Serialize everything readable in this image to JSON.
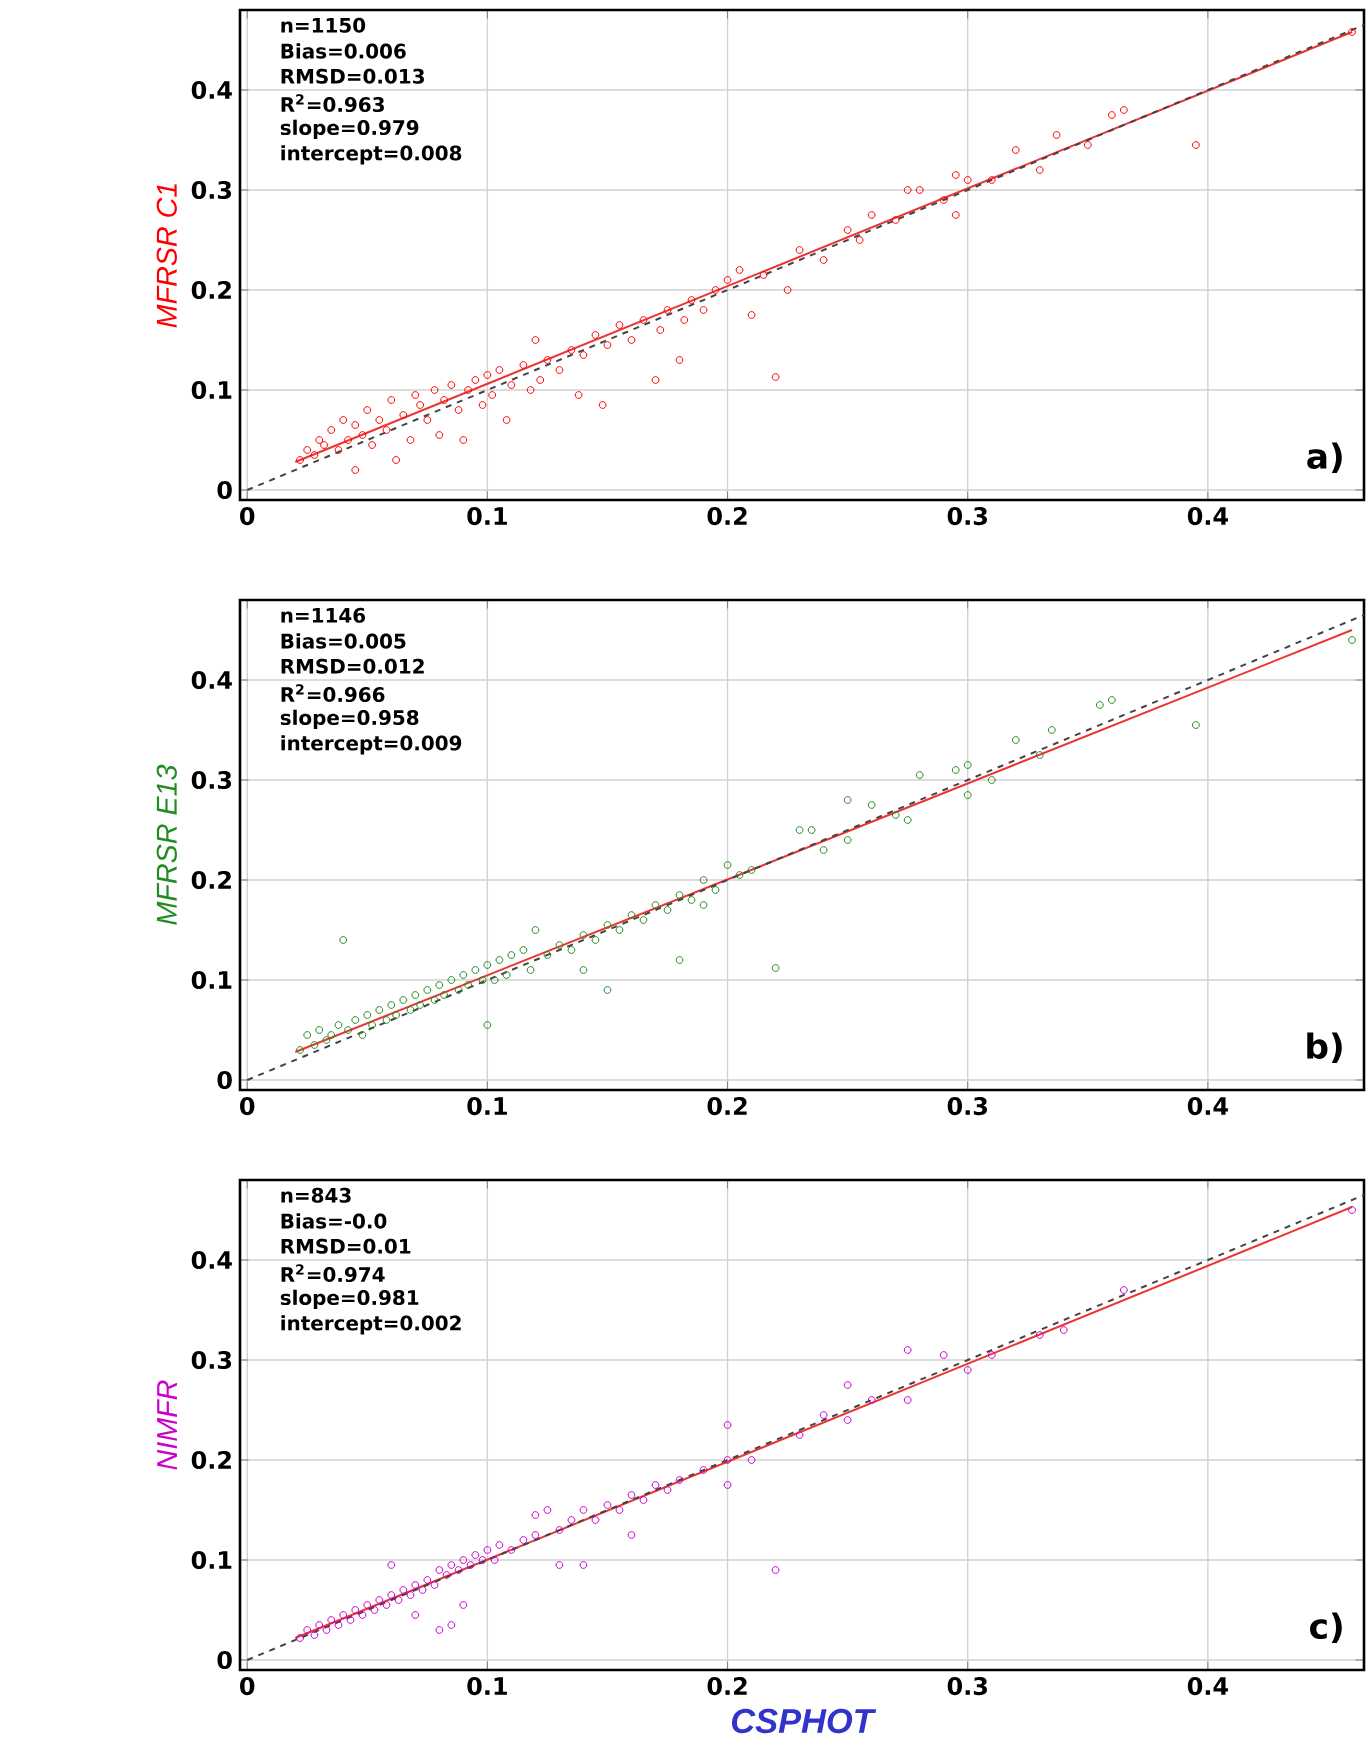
{
  "chart_data": [
    {
      "type": "scatter",
      "ylabel": "MFRSR C1",
      "xlim": [
        -0.003,
        0.465
      ],
      "ylim": [
        -0.01,
        0.48
      ],
      "xticks": [
        0,
        0.1,
        0.2,
        0.3,
        0.4
      ],
      "yticks": [
        0,
        0.1,
        0.2,
        0.3,
        0.4
      ],
      "grid": true,
      "annotations": [
        "n=1150",
        "Bias=0.006",
        "RMSD=0.013",
        "R$^{2}$=0.963",
        "slope=0.979",
        "intercept=0.008",
        "a)"
      ],
      "series": [
        {
          "color": "#ff0000",
          "marker": "circle",
          "x": [
            0.022,
            0.025,
            0.028,
            0.03,
            0.032,
            0.035,
            0.038,
            0.04,
            0.042,
            0.045,
            0.045,
            0.048,
            0.05,
            0.052,
            0.055,
            0.058,
            0.06,
            0.062,
            0.065,
            0.068,
            0.07,
            0.072,
            0.075,
            0.078,
            0.08,
            0.082,
            0.085,
            0.088,
            0.09,
            0.092,
            0.095,
            0.098,
            0.1,
            0.102,
            0.105,
            0.108,
            0.11,
            0.115,
            0.118,
            0.12,
            0.122,
            0.125,
            0.13,
            0.135,
            0.138,
            0.14,
            0.145,
            0.148,
            0.15,
            0.155,
            0.16,
            0.165,
            0.17,
            0.172,
            0.175,
            0.18,
            0.182,
            0.185,
            0.19,
            0.195,
            0.2,
            0.205,
            0.21,
            0.215,
            0.22,
            0.225,
            0.23,
            0.24,
            0.25,
            0.255,
            0.26,
            0.27,
            0.275,
            0.28,
            0.29,
            0.295,
            0.295,
            0.3,
            0.31,
            0.32,
            0.33,
            0.337,
            0.35,
            0.36,
            0.365,
            0.395,
            0.46
          ],
          "values": [
            0.03,
            0.04,
            0.035,
            0.05,
            0.045,
            0.06,
            0.04,
            0.07,
            0.05,
            0.02,
            0.065,
            0.055,
            0.08,
            0.045,
            0.07,
            0.06,
            0.09,
            0.03,
            0.075,
            0.05,
            0.095,
            0.085,
            0.07,
            0.1,
            0.055,
            0.09,
            0.105,
            0.08,
            0.05,
            0.1,
            0.11,
            0.085,
            0.115,
            0.095,
            0.12,
            0.07,
            0.105,
            0.125,
            0.1,
            0.15,
            0.11,
            0.13,
            0.12,
            0.14,
            0.095,
            0.135,
            0.155,
            0.085,
            0.145,
            0.165,
            0.15,
            0.17,
            0.11,
            0.16,
            0.18,
            0.13,
            0.17,
            0.19,
            0.18,
            0.2,
            0.21,
            0.22,
            0.175,
            0.215,
            0.113,
            0.2,
            0.24,
            0.23,
            0.26,
            0.25,
            0.275,
            0.27,
            0.3,
            0.3,
            0.29,
            0.315,
            0.275,
            0.31,
            0.31,
            0.34,
            0.32,
            0.355,
            0.345,
            0.375,
            0.38,
            0.345,
            0.458
          ]
        },
        {
          "type": "line",
          "color": "#ee3333",
          "x": [
            0.02,
            0.46
          ],
          "values": [
            0.028,
            0.458
          ]
        },
        {
          "type": "line",
          "color": "#444444",
          "line_style": "dashed",
          "x": [
            0,
            0.465
          ],
          "values": [
            0,
            0.465
          ]
        }
      ]
    },
    {
      "type": "scatter",
      "ylabel": "MFRSR E13",
      "xlim": [
        -0.003,
        0.465
      ],
      "ylim": [
        -0.01,
        0.48
      ],
      "xticks": [
        0,
        0.1,
        0.2,
        0.3,
        0.4
      ],
      "yticks": [
        0,
        0.1,
        0.2,
        0.3,
        0.4
      ],
      "grid": true,
      "annotations": [
        "n=1146",
        "Bias=0.005",
        "RMSD=0.012",
        "R$^{2}$=0.966",
        "slope=0.958",
        "intercept=0.009",
        "b)"
      ],
      "series": [
        {
          "color": "#228b22",
          "marker": "circle",
          "x": [
            0.022,
            0.025,
            0.028,
            0.03,
            0.033,
            0.035,
            0.038,
            0.04,
            0.042,
            0.045,
            0.048,
            0.05,
            0.052,
            0.055,
            0.058,
            0.06,
            0.062,
            0.065,
            0.068,
            0.07,
            0.072,
            0.075,
            0.078,
            0.08,
            0.082,
            0.085,
            0.088,
            0.09,
            0.092,
            0.095,
            0.098,
            0.1,
            0.1,
            0.103,
            0.105,
            0.108,
            0.11,
            0.115,
            0.118,
            0.12,
            0.125,
            0.13,
            0.135,
            0.14,
            0.14,
            0.145,
            0.15,
            0.15,
            0.155,
            0.16,
            0.165,
            0.17,
            0.175,
            0.18,
            0.18,
            0.185,
            0.19,
            0.19,
            0.195,
            0.2,
            0.205,
            0.21,
            0.22,
            0.23,
            0.235,
            0.24,
            0.25,
            0.25,
            0.26,
            0.27,
            0.275,
            0.28,
            0.295,
            0.3,
            0.3,
            0.31,
            0.32,
            0.33,
            0.335,
            0.355,
            0.36,
            0.395,
            0.46
          ],
          "values": [
            0.03,
            0.045,
            0.035,
            0.05,
            0.04,
            0.045,
            0.055,
            0.14,
            0.05,
            0.06,
            0.045,
            0.065,
            0.055,
            0.07,
            0.06,
            0.075,
            0.065,
            0.08,
            0.07,
            0.085,
            0.075,
            0.09,
            0.08,
            0.095,
            0.085,
            0.1,
            0.09,
            0.105,
            0.095,
            0.11,
            0.1,
            0.055,
            0.115,
            0.1,
            0.12,
            0.105,
            0.125,
            0.13,
            0.11,
            0.15,
            0.125,
            0.135,
            0.13,
            0.145,
            0.11,
            0.14,
            0.155,
            0.09,
            0.15,
            0.165,
            0.16,
            0.175,
            0.17,
            0.185,
            0.12,
            0.18,
            0.2,
            0.175,
            0.19,
            0.215,
            0.205,
            0.21,
            0.112,
            0.25,
            0.25,
            0.23,
            0.28,
            0.24,
            0.275,
            0.265,
            0.26,
            0.305,
            0.31,
            0.315,
            0.285,
            0.3,
            0.34,
            0.325,
            0.35,
            0.375,
            0.38,
            0.355,
            0.44
          ]
        },
        {
          "type": "line",
          "color": "#ee3333",
          "x": [
            0.02,
            0.46
          ],
          "values": [
            0.028,
            0.45
          ]
        },
        {
          "type": "line",
          "color": "#444444",
          "line_style": "dashed",
          "x": [
            0,
            0.465
          ],
          "values": [
            0,
            0.465
          ]
        }
      ]
    },
    {
      "type": "scatter",
      "xlabel": "CSPHOT",
      "ylabel": "NIMFR",
      "xlim": [
        -0.003,
        0.465
      ],
      "ylim": [
        -0.01,
        0.48
      ],
      "xticks": [
        0,
        0.1,
        0.2,
        0.3,
        0.4
      ],
      "yticks": [
        0,
        0.1,
        0.2,
        0.3,
        0.4
      ],
      "grid": true,
      "annotations": [
        "n=843",
        "Bias=-0.0",
        "RMSD=0.01",
        "R$^{2}$=0.974",
        "slope=0.981",
        "intercept=0.002",
        "c)"
      ],
      "series": [
        {
          "color": "#cc00cc",
          "marker": "circle",
          "x": [
            0.022,
            0.025,
            0.028,
            0.03,
            0.033,
            0.035,
            0.038,
            0.04,
            0.043,
            0.045,
            0.048,
            0.05,
            0.053,
            0.055,
            0.058,
            0.06,
            0.06,
            0.063,
            0.065,
            0.068,
            0.07,
            0.07,
            0.073,
            0.075,
            0.078,
            0.08,
            0.08,
            0.083,
            0.085,
            0.085,
            0.088,
            0.09,
            0.09,
            0.093,
            0.095,
            0.098,
            0.1,
            0.103,
            0.105,
            0.11,
            0.115,
            0.12,
            0.12,
            0.125,
            0.13,
            0.13,
            0.135,
            0.14,
            0.14,
            0.145,
            0.15,
            0.155,
            0.16,
            0.16,
            0.165,
            0.17,
            0.175,
            0.18,
            0.19,
            0.2,
            0.2,
            0.2,
            0.21,
            0.22,
            0.23,
            0.24,
            0.25,
            0.25,
            0.26,
            0.275,
            0.275,
            0.29,
            0.3,
            0.31,
            0.33,
            0.34,
            0.365,
            0.46
          ],
          "values": [
            0.022,
            0.03,
            0.025,
            0.035,
            0.03,
            0.04,
            0.035,
            0.045,
            0.04,
            0.05,
            0.045,
            0.055,
            0.05,
            0.06,
            0.055,
            0.065,
            0.095,
            0.06,
            0.07,
            0.065,
            0.075,
            0.045,
            0.07,
            0.08,
            0.075,
            0.09,
            0.03,
            0.085,
            0.095,
            0.035,
            0.09,
            0.1,
            0.055,
            0.095,
            0.105,
            0.1,
            0.11,
            0.1,
            0.115,
            0.11,
            0.12,
            0.125,
            0.145,
            0.15,
            0.13,
            0.095,
            0.14,
            0.15,
            0.095,
            0.14,
            0.155,
            0.15,
            0.165,
            0.125,
            0.16,
            0.175,
            0.17,
            0.18,
            0.19,
            0.2,
            0.235,
            0.175,
            0.2,
            0.09,
            0.225,
            0.245,
            0.275,
            0.24,
            0.26,
            0.31,
            0.26,
            0.305,
            0.29,
            0.305,
            0.325,
            0.33,
            0.37,
            0.45
          ]
        },
        {
          "type": "line",
          "color": "#ee3333",
          "x": [
            0.02,
            0.46
          ],
          "values": [
            0.022,
            0.453
          ]
        },
        {
          "type": "line",
          "color": "#444444",
          "line_style": "dashed",
          "x": [
            0,
            0.465
          ],
          "values": [
            0,
            0.465
          ]
        }
      ]
    }
  ]
}
